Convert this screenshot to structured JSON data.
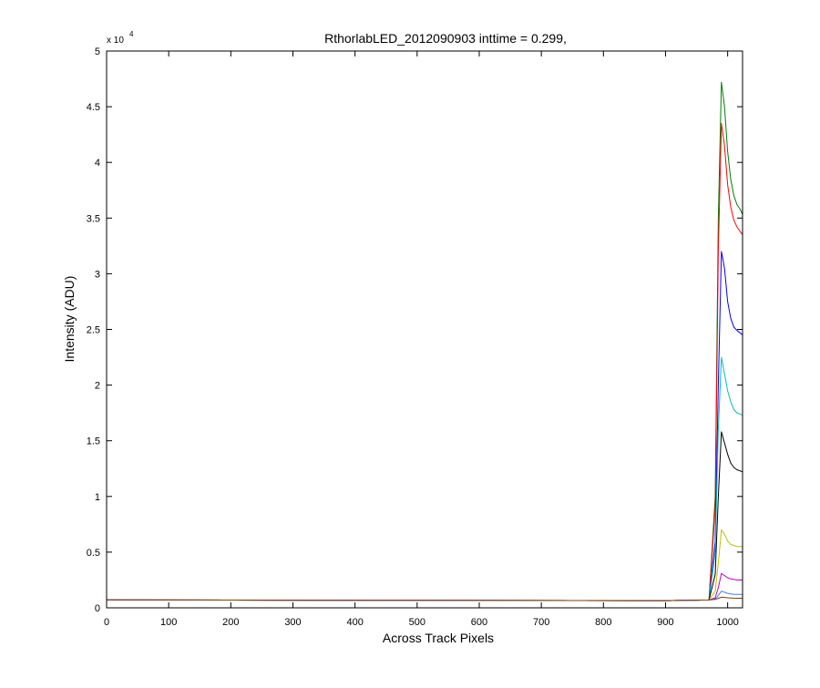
{
  "chart_data": {
    "type": "line",
    "title": "RthorlabLED_2012090903 inttime = 0.299,",
    "xlabel": "Across Track Pixels",
    "ylabel": "Intensity (ADU)",
    "y_multiplier": {
      "base": "x 10",
      "exponent": "4"
    },
    "xlim": [
      0,
      1024
    ],
    "ylim": [
      0,
      50000
    ],
    "x_ticks": [
      0,
      100,
      200,
      300,
      400,
      500,
      600,
      700,
      800,
      900,
      1000
    ],
    "y_ticks": [
      0,
      5000,
      10000,
      15000,
      20000,
      25000,
      30000,
      35000,
      40000,
      45000,
      50000
    ],
    "y_tick_labels": [
      "0",
      "0.5",
      "1",
      "1.5",
      "2",
      "2.5",
      "3",
      "3.5",
      "4",
      "4.5",
      "5"
    ],
    "grid": false,
    "legend": "none",
    "series": [
      {
        "color": "#007f00",
        "x": [
          0,
          900,
          970,
          980,
          985,
          990,
          995,
          1000,
          1005,
          1010,
          1015,
          1020,
          1024
        ],
        "values": [
          700,
          650,
          700,
          10000,
          35000,
          47200,
          45000,
          41000,
          38500,
          37000,
          36200,
          35800,
          35300
        ]
      },
      {
        "color": "#ff0000",
        "x": [
          0,
          900,
          970,
          980,
          985,
          990,
          995,
          1000,
          1005,
          1010,
          1015,
          1020,
          1024
        ],
        "values": [
          700,
          650,
          700,
          9000,
          32000,
          43500,
          41500,
          38000,
          36000,
          34800,
          34200,
          33800,
          33500
        ]
      },
      {
        "color": "#0000ff",
        "x": [
          0,
          900,
          970,
          980,
          985,
          990,
          995,
          1000,
          1005,
          1010,
          1015,
          1020,
          1024
        ],
        "values": [
          700,
          650,
          700,
          6000,
          20000,
          32000,
          30500,
          27500,
          26000,
          25200,
          24900,
          24700,
          24500
        ]
      },
      {
        "color": "#00bfbf",
        "x": [
          0,
          900,
          970,
          980,
          985,
          990,
          995,
          1000,
          1005,
          1010,
          1015,
          1020,
          1024
        ],
        "values": [
          700,
          650,
          700,
          5000,
          16000,
          22500,
          21000,
          19500,
          18500,
          17800,
          17500,
          17400,
          17300
        ]
      },
      {
        "color": "#000000",
        "x": [
          0,
          900,
          970,
          980,
          985,
          990,
          995,
          1000,
          1005,
          1010,
          1015,
          1020,
          1024
        ],
        "values": [
          700,
          650,
          700,
          3000,
          10000,
          15800,
          14800,
          13800,
          13000,
          12600,
          12400,
          12300,
          12200
        ]
      },
      {
        "color": "#bfbf00",
        "x": [
          0,
          900,
          970,
          980,
          985,
          990,
          995,
          1000,
          1005,
          1010,
          1015,
          1020,
          1024
        ],
        "values": [
          700,
          650,
          700,
          1500,
          4000,
          7000,
          6600,
          6000,
          5700,
          5600,
          5500,
          5500,
          5500
        ]
      },
      {
        "color": "#bf00bf",
        "x": [
          0,
          900,
          970,
          980,
          985,
          990,
          995,
          1000,
          1005,
          1010,
          1015,
          1020,
          1024
        ],
        "values": [
          700,
          650,
          700,
          900,
          1800,
          3100,
          2900,
          2700,
          2600,
          2550,
          2500,
          2500,
          2500
        ]
      },
      {
        "color": "#3f7fff",
        "x": [
          0,
          900,
          970,
          980,
          985,
          990,
          995,
          1000,
          1005,
          1010,
          1015,
          1020,
          1024
        ],
        "values": [
          700,
          650,
          700,
          800,
          1100,
          1500,
          1400,
          1300,
          1250,
          1200,
          1200,
          1200,
          1200
        ]
      },
      {
        "color": "#7f3f00",
        "x": [
          0,
          900,
          970,
          980,
          985,
          990,
          995,
          1000,
          1005,
          1010,
          1015,
          1020,
          1024
        ],
        "values": [
          700,
          650,
          700,
          750,
          850,
          950,
          930,
          900,
          880,
          870,
          860,
          860,
          860
        ]
      }
    ]
  }
}
